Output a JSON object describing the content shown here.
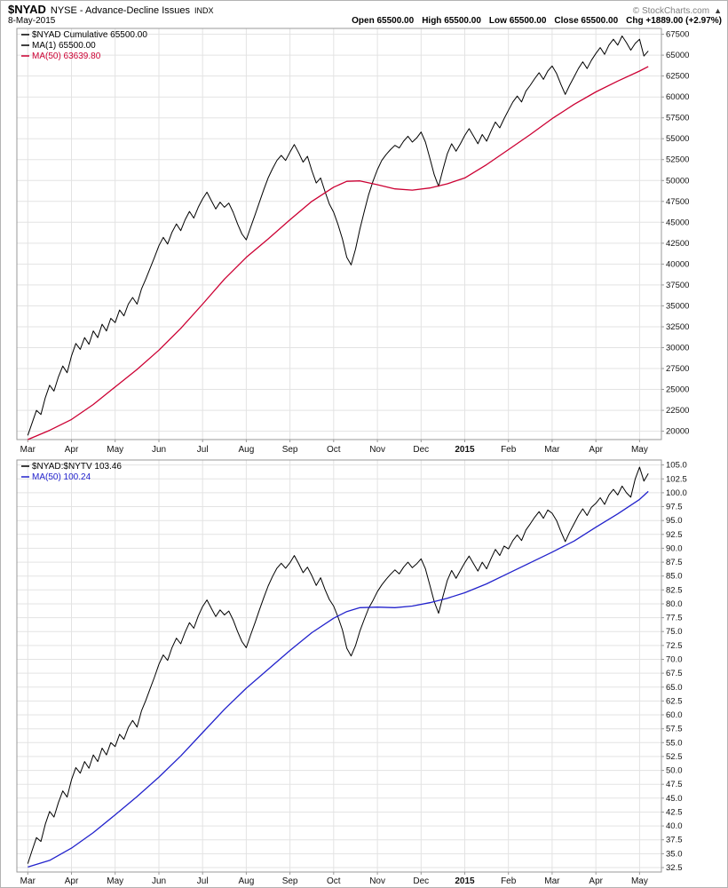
{
  "header": {
    "symbol": "$NYAD",
    "title": "NYSE - Advance-Decline Issues",
    "exchange": "INDX",
    "date": "8-May-2015",
    "copyright": "© StockCharts.com",
    "arrow_icon": "▲",
    "quote": {
      "open_label": "Open",
      "open": "65500.00",
      "high_label": "High",
      "high": "65500.00",
      "low_label": "Low",
      "low": "65500.00",
      "close_label": "Close",
      "close": "65500.00",
      "chg_label": "Chg",
      "chg": "+1889.00 (+2.97%)"
    }
  },
  "colors": {
    "grid": "#e3e3e3",
    "border": "#999999",
    "axis_text": "#111111",
    "price": "#000000",
    "ma_red": "#cc0033",
    "ma_blue": "#2222cc"
  },
  "chart_data": [
    {
      "name": "cumulative-panel",
      "type": "line",
      "title": "$NYAD Cumulative",
      "xlim": [
        -0.25,
        14.5
      ],
      "ylim": [
        19000,
        68200
      ],
      "grid": true,
      "legend_position": "top-left",
      "xtick_positions": [
        0,
        1,
        2,
        3,
        4,
        5,
        6,
        7,
        8,
        9,
        10,
        11,
        12,
        13,
        14
      ],
      "x_categories": [
        "Mar",
        "Apr",
        "May",
        "Jun",
        "Jul",
        "Aug",
        "Sep",
        "Oct",
        "Nov",
        "Dec",
        "2015",
        "Feb",
        "Mar",
        "Apr",
        "May"
      ],
      "ytick_labels": [
        "20000",
        "22500",
        "25000",
        "27500",
        "30000",
        "32500",
        "35000",
        "37500",
        "40000",
        "42500",
        "45000",
        "47500",
        "50000",
        "52500",
        "55000",
        "57500",
        "60000",
        "62500",
        "65000",
        "67500"
      ],
      "legend": [
        {
          "label": "$NYAD Cumulative 65500.00",
          "color": "#000000"
        },
        {
          "label": "MA(1) 65500.00",
          "color": "#000000"
        },
        {
          "label": "MA(50) 63639.80",
          "color": "#cc0033"
        }
      ],
      "series": [
        {
          "name": "nyad-cumulative-line",
          "color": "#000000",
          "width": 1,
          "x0": 0,
          "dx": 0.1,
          "values": [
            19500,
            21000,
            22500,
            22000,
            24000,
            25500,
            24800,
            26500,
            27800,
            27000,
            29000,
            30500,
            29800,
            31200,
            30400,
            32000,
            31200,
            32800,
            32000,
            33500,
            33000,
            34500,
            33800,
            35200,
            36000,
            35200,
            37000,
            38200,
            39500,
            40800,
            42200,
            43200,
            42400,
            43800,
            44800,
            44000,
            45300,
            46300,
            45500,
            46800,
            47800,
            48600,
            47600,
            46600,
            47400,
            46800,
            47300,
            46200,
            44800,
            43600,
            42900,
            44400,
            45900,
            47400,
            48900,
            50300,
            51400,
            52400,
            53000,
            52400,
            53400,
            54300,
            53300,
            52200,
            52900,
            51200,
            49700,
            50300,
            48700,
            47200,
            46200,
            44700,
            43000,
            40800,
            39900,
            41800,
            44200,
            46300,
            48300,
            49900,
            51300,
            52400,
            53100,
            53700,
            54200,
            53900,
            54700,
            55300,
            54600,
            55100,
            55800,
            54600,
            52700,
            50700,
            49300,
            51300,
            53200,
            54400,
            53500,
            54400,
            55400,
            56200,
            55300,
            54400,
            55500,
            54700,
            55900,
            57000,
            56300,
            57400,
            58400,
            59400,
            60100,
            59400,
            60700,
            61400,
            62200,
            62900,
            62100,
            63100,
            63700,
            62800,
            61500,
            60300,
            61400,
            62400,
            63400,
            64200,
            63400,
            64400,
            65200,
            65900,
            65100,
            66200,
            66900,
            66200,
            67300,
            66500,
            65600,
            66400,
            66900,
            64900,
            65500
          ]
        },
        {
          "name": "ma50-red-line",
          "color": "#cc0033",
          "width": 1.3,
          "points": [
            [
              0,
              19000
            ],
            [
              0.5,
              20100
            ],
            [
              1,
              21400
            ],
            [
              1.5,
              23200
            ],
            [
              2,
              25300
            ],
            [
              2.5,
              27400
            ],
            [
              3,
              29700
            ],
            [
              3.5,
              32300
            ],
            [
              4,
              35200
            ],
            [
              4.5,
              38200
            ],
            [
              5,
              40800
            ],
            [
              5.5,
              43000
            ],
            [
              6,
              45300
            ],
            [
              6.5,
              47500
            ],
            [
              7,
              49200
            ],
            [
              7.3,
              49900
            ],
            [
              7.6,
              49950
            ],
            [
              8,
              49500
            ],
            [
              8.4,
              49000
            ],
            [
              8.8,
              48850
            ],
            [
              9.2,
              49100
            ],
            [
              9.6,
              49600
            ],
            [
              10,
              50300
            ],
            [
              10.5,
              51900
            ],
            [
              11,
              53700
            ],
            [
              11.5,
              55500
            ],
            [
              12,
              57400
            ],
            [
              12.5,
              59100
            ],
            [
              13,
              60600
            ],
            [
              13.5,
              61900
            ],
            [
              14,
              63100
            ],
            [
              14.2,
              63640
            ]
          ]
        }
      ]
    },
    {
      "name": "ratio-panel",
      "type": "line",
      "title": "$NYAD:$NYTV",
      "xlim": [
        -0.25,
        14.5
      ],
      "ylim": [
        31.7,
        105.9
      ],
      "grid": true,
      "legend_position": "top-left",
      "xtick_positions": [
        0,
        1,
        2,
        3,
        4,
        5,
        6,
        7,
        8,
        9,
        10,
        11,
        12,
        13,
        14
      ],
      "x_categories": [
        "Mar",
        "Apr",
        "May",
        "Jun",
        "Jul",
        "Aug",
        "Sep",
        "Oct",
        "Nov",
        "Dec",
        "2015",
        "Feb",
        "Mar",
        "Apr",
        "May"
      ],
      "ytick_labels": [
        "32.5",
        "35.0",
        "37.5",
        "40.0",
        "42.5",
        "45.0",
        "47.5",
        "50.0",
        "52.5",
        "55.0",
        "57.5",
        "60.0",
        "62.5",
        "65.0",
        "67.5",
        "70.0",
        "72.5",
        "75.0",
        "77.5",
        "80.0",
        "82.5",
        "85.0",
        "87.5",
        "90.0",
        "92.5",
        "95.0",
        "97.5",
        "100.0",
        "102.5",
        "105.0"
      ],
      "legend": [
        {
          "label": "$NYAD:$NYTV 103.46",
          "color": "#000000"
        },
        {
          "label": "MA(50) 100.24",
          "color": "#2222cc"
        }
      ],
      "series": [
        {
          "name": "nyad-nytv-ratio-line",
          "color": "#000000",
          "width": 1,
          "x0": 0,
          "dx": 0.1,
          "values": [
            33.2,
            35.6,
            37.9,
            37.2,
            40.3,
            42.6,
            41.6,
            44.2,
            46.3,
            45.2,
            48.3,
            50.5,
            49.5,
            51.6,
            50.4,
            52.8,
            51.6,
            54.0,
            52.8,
            55.0,
            54.3,
            56.5,
            55.6,
            57.7,
            59.0,
            57.8,
            60.7,
            62.6,
            64.7,
            66.8,
            69.1,
            70.8,
            69.8,
            72.1,
            73.8,
            72.8,
            74.9,
            76.6,
            75.6,
            77.8,
            79.5,
            80.7,
            79.2,
            77.7,
            78.9,
            78.0,
            78.7,
            77.1,
            75.0,
            73.2,
            72.1,
            74.4,
            76.6,
            78.9,
            81.1,
            83.2,
            84.9,
            86.4,
            87.3,
            86.4,
            87.4,
            88.7,
            87.2,
            85.6,
            86.6,
            85.1,
            83.3,
            84.7,
            82.6,
            80.8,
            79.6,
            77.6,
            75.3,
            72.0,
            70.6,
            72.5,
            75.1,
            77.2,
            79.2,
            80.6,
            82.2,
            83.4,
            84.4,
            85.3,
            86.1,
            85.4,
            86.6,
            87.5,
            86.5,
            87.2,
            88.1,
            86.3,
            83.4,
            80.4,
            78.3,
            81.3,
            84.2,
            86.0,
            84.6,
            86.0,
            87.4,
            88.6,
            87.2,
            85.9,
            87.5,
            86.3,
            88.1,
            89.8,
            88.7,
            90.4,
            89.9,
            91.4,
            92.4,
            91.4,
            93.3,
            94.4,
            95.6,
            96.6,
            95.4,
            96.9,
            96.3,
            95.0,
            93.0,
            91.2,
            92.9,
            94.4,
            95.9,
            97.1,
            95.9,
            97.4,
            98.1,
            99.1,
            97.9,
            99.6,
            100.6,
            99.6,
            101.2,
            100.0,
            99.2,
            102.5,
            104.6,
            102.1,
            103.46
          ]
        },
        {
          "name": "ma50-blue-line",
          "color": "#2222cc",
          "width": 1.3,
          "points": [
            [
              0,
              32.6
            ],
            [
              0.5,
              33.8
            ],
            [
              1,
              36.0
            ],
            [
              1.5,
              38.8
            ],
            [
              2,
              42.0
            ],
            [
              2.5,
              45.3
            ],
            [
              3,
              48.8
            ],
            [
              3.5,
              52.6
            ],
            [
              4,
              56.8
            ],
            [
              4.5,
              61.0
            ],
            [
              5,
              64.8
            ],
            [
              5.5,
              68.2
            ],
            [
              6,
              71.6
            ],
            [
              6.5,
              74.8
            ],
            [
              7,
              77.4
            ],
            [
              7.3,
              78.6
            ],
            [
              7.6,
              79.3
            ],
            [
              8,
              79.4
            ],
            [
              8.4,
              79.3
            ],
            [
              8.8,
              79.6
            ],
            [
              9.2,
              80.2
            ],
            [
              9.6,
              81.0
            ],
            [
              10,
              82.0
            ],
            [
              10.5,
              83.6
            ],
            [
              11,
              85.5
            ],
            [
              11.5,
              87.4
            ],
            [
              12,
              89.3
            ],
            [
              12.5,
              91.3
            ],
            [
              13,
              93.8
            ],
            [
              13.5,
              96.2
            ],
            [
              14,
              98.8
            ],
            [
              14.2,
              100.24
            ]
          ]
        }
      ]
    }
  ]
}
